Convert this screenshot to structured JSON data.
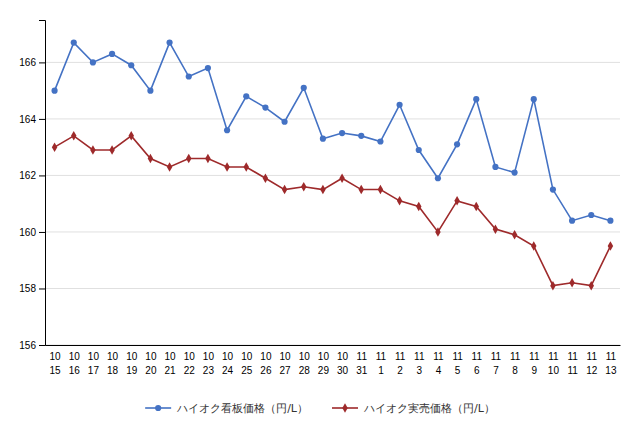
{
  "chart_data": {
    "type": "line",
    "categories": [
      [
        "10",
        "15"
      ],
      [
        "10",
        "16"
      ],
      [
        "10",
        "17"
      ],
      [
        "10",
        "18"
      ],
      [
        "10",
        "19"
      ],
      [
        "10",
        "20"
      ],
      [
        "10",
        "21"
      ],
      [
        "10",
        "22"
      ],
      [
        "10",
        "23"
      ],
      [
        "10",
        "24"
      ],
      [
        "10",
        "25"
      ],
      [
        "10",
        "26"
      ],
      [
        "10",
        "27"
      ],
      [
        "10",
        "28"
      ],
      [
        "10",
        "29"
      ],
      [
        "10",
        "30"
      ],
      [
        "11",
        "31"
      ],
      [
        "11",
        "1"
      ],
      [
        "11",
        "2"
      ],
      [
        "11",
        "3"
      ],
      [
        "11",
        "4"
      ],
      [
        "11",
        "5"
      ],
      [
        "11",
        "6"
      ],
      [
        "11",
        "7"
      ],
      [
        "11",
        "8"
      ],
      [
        "11",
        "9"
      ],
      [
        "11",
        "10"
      ],
      [
        "11",
        "11"
      ],
      [
        "11",
        "12"
      ],
      [
        "11",
        "13"
      ]
    ],
    "series": [
      {
        "name": "ハイオク看板価格（円/L）",
        "color": "#4472c4",
        "marker": "circle",
        "values": [
          165.0,
          166.7,
          166.0,
          166.3,
          165.9,
          165.0,
          166.7,
          165.5,
          165.8,
          163.6,
          164.8,
          164.4,
          163.9,
          165.1,
          163.3,
          163.5,
          163.4,
          163.2,
          164.5,
          162.9,
          161.9,
          163.1,
          164.7,
          162.3,
          162.1,
          164.7,
          161.5,
          160.4,
          160.6,
          160.4
        ]
      },
      {
        "name": "ハイオク実売価格（円/L）",
        "color": "#9e2a2b",
        "marker": "diamond",
        "values": [
          163.0,
          163.4,
          162.9,
          162.9,
          163.4,
          162.6,
          162.3,
          162.6,
          162.6,
          162.3,
          162.3,
          161.9,
          161.5,
          161.6,
          161.5,
          161.9,
          161.5,
          161.5,
          161.1,
          160.9,
          160.0,
          161.1,
          160.9,
          160.1,
          159.9,
          159.5,
          158.1,
          158.2,
          158.1,
          159.5
        ]
      }
    ],
    "ylim": [
      156,
      167.5
    ],
    "yticks": [
      156,
      158,
      160,
      162,
      164,
      166
    ],
    "grid": true,
    "legend": "bottom"
  }
}
